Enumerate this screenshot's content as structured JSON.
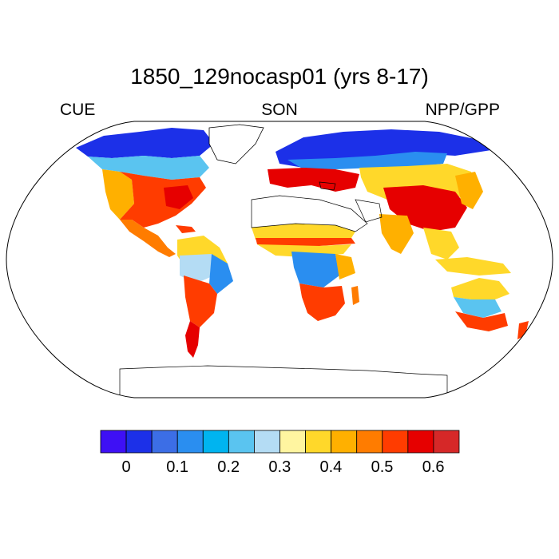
{
  "title": "1850_129nocasp01 (yrs 8-17)",
  "left_label": "CUE",
  "center_label": "SON",
  "right_label": "NPP/GPP",
  "colorbar": {
    "colors": [
      "#3e10f5",
      "#1c30e8",
      "#3c6ee6",
      "#2a8ef0",
      "#00b4f0",
      "#5ac4f0",
      "#b4dcf4",
      "#fff5a0",
      "#ffd82a",
      "#ffb000",
      "#ff7c00",
      "#ff3c00",
      "#e60000",
      "#d62828"
    ],
    "tick_labels": [
      "0",
      "0.1",
      "0.2",
      "0.3",
      "0.4",
      "0.5",
      "0.6"
    ]
  },
  "map_colors": {
    "deep_blue": "#1c30e8",
    "blue": "#2a8ef0",
    "light_blue": "#5ac4f0",
    "pale_blue": "#b4dcf4",
    "pale_yellow": "#fff5a0",
    "yellow": "#ffd82a",
    "orange": "#ffb000",
    "dark_orange": "#ff7c00",
    "red": "#ff3c00",
    "dark_red": "#e60000"
  }
}
